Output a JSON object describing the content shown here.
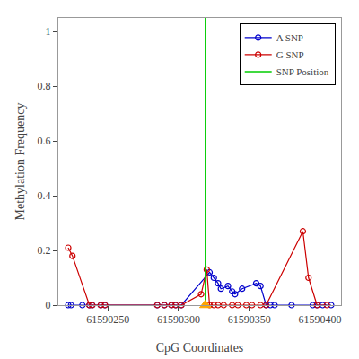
{
  "chart_data": {
    "type": "line",
    "xlabel": "CpG Coordinates",
    "ylabel": "Methylation Frequency",
    "xlim": [
      61590215,
      61590415
    ],
    "ylim": [
      0,
      1.05
    ],
    "xticks": [
      61590250,
      61590300,
      61590350,
      61590400
    ],
    "yticks": [
      0.0,
      0.2,
      0.4,
      0.6,
      0.8,
      1.0
    ],
    "grid": false,
    "legend": "upper right",
    "series": [
      {
        "name": "A SNP",
        "color": "#0000CC",
        "marker": "circle-open",
        "line_style": "solid",
        "x": [
          61590222,
          61590224,
          61590232,
          61590237,
          61590239,
          61590245,
          61590248,
          61590285,
          61590290,
          61590295,
          61590298,
          61590302,
          61590322,
          61590325,
          61590328,
          61590330,
          61590335,
          61590338,
          61590340,
          61590345,
          61590355,
          61590358,
          61590362,
          61590365,
          61590368,
          61590380,
          61590395,
          61590398,
          61590402,
          61590408
        ],
        "values": [
          0.0,
          0.0,
          0.0,
          0.0,
          0.0,
          0.0,
          0.0,
          0.0,
          0.0,
          0.0,
          0.0,
          0.0,
          0.12,
          0.1,
          0.08,
          0.06,
          0.07,
          0.05,
          0.04,
          0.06,
          0.08,
          0.07,
          0.0,
          0.0,
          0.0,
          0.0,
          0.0,
          0.0,
          0.0,
          0.0
        ]
      },
      {
        "name": "G SNP",
        "color": "#CC0000",
        "marker": "circle-open",
        "line_style": "solid",
        "x": [
          61590222,
          61590225,
          61590237,
          61590239,
          61590245,
          61590248,
          61590285,
          61590290,
          61590295,
          61590298,
          61590302,
          61590316,
          61590320,
          61590322,
          61590325,
          61590328,
          61590332,
          61590338,
          61590342,
          61590348,
          61590352,
          61590358,
          61590362,
          61590388,
          61590392,
          61590398,
          61590405
        ],
        "values": [
          0.21,
          0.18,
          0.0,
          0.0,
          0.0,
          0.0,
          0.0,
          0.0,
          0.0,
          0.0,
          0.0,
          0.04,
          0.13,
          0.0,
          0.0,
          0.0,
          0.0,
          0.0,
          0.0,
          0.0,
          0.0,
          0.0,
          0.0,
          0.27,
          0.1,
          0.0,
          0.0
        ]
      },
      {
        "name": "SNP Position",
        "type": "vline",
        "color": "#00CC00",
        "line_style": "solid",
        "x": [
          61590319
        ]
      },
      {
        "type": "scatter",
        "color": "#FFA500",
        "marker": "triangle-up",
        "x": [
          61590319
        ],
        "values": [
          0.0
        ]
      }
    ]
  }
}
